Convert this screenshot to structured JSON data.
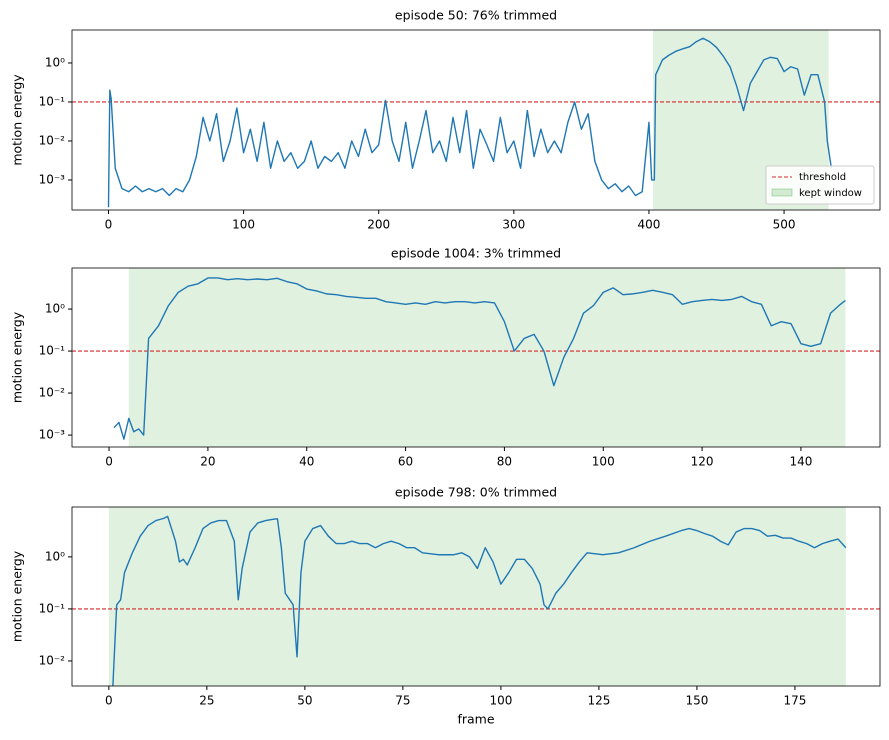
{
  "chart_data": [
    {
      "type": "line",
      "title": "episode 50: 76% trimmed",
      "ylabel": "motion energy",
      "log_y": true,
      "xlim": [
        -27,
        571
      ],
      "ylim": [
        0.00017,
        7
      ],
      "xticks": [
        0,
        100,
        200,
        300,
        400,
        500
      ],
      "yticks": [
        {
          "value": 0.001,
          "label": "10⁻³"
        },
        {
          "value": 0.01,
          "label": "10⁻²"
        },
        {
          "value": 0.1,
          "label": "10⁻¹"
        },
        {
          "value": 1,
          "label": "10⁰"
        }
      ],
      "threshold": 0.1,
      "threshold_color": "#d62728",
      "window": [
        403,
        533
      ],
      "window_color": "#2ca02c",
      "legend": {
        "threshold": "threshold",
        "window": "kept window",
        "loc": "lower right"
      },
      "x": [
        0,
        1,
        2,
        5,
        10,
        15,
        20,
        25,
        30,
        35,
        40,
        45,
        50,
        55,
        60,
        65,
        70,
        75,
        80,
        85,
        90,
        95,
        100,
        105,
        110,
        115,
        120,
        125,
        130,
        135,
        140,
        145,
        150,
        155,
        160,
        165,
        170,
        175,
        180,
        185,
        190,
        195,
        200,
        205,
        210,
        215,
        220,
        225,
        230,
        235,
        240,
        245,
        250,
        255,
        260,
        265,
        270,
        275,
        280,
        285,
        290,
        295,
        300,
        305,
        310,
        315,
        320,
        325,
        330,
        335,
        340,
        345,
        350,
        355,
        360,
        365,
        370,
        375,
        380,
        385,
        390,
        395,
        400,
        402,
        404,
        405,
        410,
        415,
        420,
        425,
        430,
        435,
        440,
        445,
        450,
        455,
        460,
        465,
        470,
        475,
        480,
        485,
        490,
        495,
        500,
        505,
        510,
        515,
        520,
        525,
        530,
        532,
        535
      ],
      "series": [
        {
          "color": "#1f77b4",
          "values": [
            0.0002,
            0.2,
            0.12,
            0.002,
            0.0006,
            0.0005,
            0.0007,
            0.0005,
            0.0006,
            0.0005,
            0.0006,
            0.0004,
            0.0006,
            0.0005,
            0.001,
            0.004,
            0.04,
            0.01,
            0.05,
            0.003,
            0.01,
            0.07,
            0.005,
            0.02,
            0.003,
            0.03,
            0.002,
            0.01,
            0.003,
            0.005,
            0.002,
            0.003,
            0.01,
            0.002,
            0.004,
            0.003,
            0.005,
            0.002,
            0.01,
            0.004,
            0.02,
            0.005,
            0.008,
            0.11,
            0.01,
            0.003,
            0.03,
            0.002,
            0.01,
            0.06,
            0.005,
            0.01,
            0.003,
            0.04,
            0.005,
            0.06,
            0.002,
            0.02,
            0.008,
            0.003,
            0.04,
            0.005,
            0.01,
            0.002,
            0.06,
            0.004,
            0.02,
            0.005,
            0.01,
            0.005,
            0.03,
            0.1,
            0.02,
            0.05,
            0.003,
            0.001,
            0.0006,
            0.0008,
            0.0005,
            0.0007,
            0.0004,
            0.0005,
            0.03,
            0.001,
            0.001,
            0.5,
            1.2,
            1.6,
            2,
            2.3,
            2.6,
            3.5,
            4.3,
            3.5,
            2.5,
            1.5,
            0.8,
            0.25,
            0.06,
            0.3,
            0.6,
            1.2,
            1.4,
            1.3,
            0.6,
            0.8,
            0.7,
            0.15,
            0.5,
            0.5,
            0.1,
            0.01,
            0.002
          ]
        }
      ]
    },
    {
      "type": "line",
      "title": "episode 1004: 3% trimmed",
      "ylabel": "motion energy",
      "log_y": true,
      "xlim": [
        -7.5,
        156
      ],
      "ylim": [
        0.00052,
        9.5
      ],
      "xticks": [
        0,
        20,
        40,
        60,
        80,
        100,
        120,
        140
      ],
      "yticks": [
        {
          "value": 0.001,
          "label": "10⁻³"
        },
        {
          "value": 0.01,
          "label": "10⁻²"
        },
        {
          "value": 0.1,
          "label": "10⁻¹"
        },
        {
          "value": 1,
          "label": "10⁰"
        }
      ],
      "threshold": 0.1,
      "threshold_color": "#d62728",
      "window": [
        4,
        149
      ],
      "window_color": "#2ca02c",
      "x": [
        1,
        2,
        3,
        4,
        5,
        6,
        7,
        8,
        10,
        12,
        14,
        16,
        18,
        20,
        22,
        24,
        26,
        28,
        30,
        32,
        34,
        36,
        38,
        40,
        42,
        44,
        46,
        48,
        50,
        52,
        54,
        56,
        58,
        60,
        62,
        64,
        66,
        68,
        70,
        72,
        74,
        76,
        78,
        80,
        82,
        84,
        86,
        88,
        90,
        92,
        94,
        96,
        98,
        100,
        102,
        104,
        106,
        108,
        110,
        112,
        114,
        116,
        118,
        120,
        122,
        124,
        126,
        128,
        130,
        132,
        134,
        136,
        138,
        140,
        142,
        144,
        146,
        148,
        149
      ],
      "series": [
        {
          "color": "#1f77b4",
          "values": [
            0.0015,
            0.002,
            0.0008,
            0.0025,
            0.0012,
            0.0014,
            0.001,
            0.2,
            0.4,
            1.2,
            2.5,
            3.5,
            4,
            5.5,
            5.5,
            5,
            5.3,
            5,
            5.2,
            5,
            5.4,
            4.5,
            4,
            3,
            2.7,
            2.3,
            2.2,
            2,
            1.9,
            1.8,
            1.8,
            1.5,
            1.4,
            1.3,
            1.4,
            1.3,
            1.5,
            1.4,
            1.5,
            1.5,
            1.4,
            1.5,
            1.4,
            0.5,
            0.1,
            0.2,
            0.25,
            0.1,
            0.015,
            0.07,
            0.2,
            0.8,
            1.2,
            2.5,
            3.2,
            2.2,
            2.3,
            2.5,
            2.8,
            2.5,
            2.2,
            1.3,
            1.5,
            1.6,
            1.7,
            1.6,
            1.7,
            2,
            1.5,
            1.3,
            0.4,
            0.5,
            0.45,
            0.15,
            0.13,
            0.15,
            0.8,
            1.3,
            1.6
          ]
        }
      ]
    },
    {
      "type": "line",
      "title": "episode 798: 0% trimmed",
      "xlabel": "frame",
      "ylabel": "motion energy",
      "log_y": true,
      "xlim": [
        -9.4,
        196.7
      ],
      "ylim": [
        0.0033,
        9.1
      ],
      "xticks": [
        0,
        25,
        50,
        75,
        100,
        125,
        150,
        175
      ],
      "yticks": [
        {
          "value": 0.01,
          "label": "10⁻²"
        },
        {
          "value": 0.1,
          "label": "10⁻¹"
        },
        {
          "value": 1,
          "label": "10⁰"
        }
      ],
      "threshold": 0.1,
      "threshold_color": "#d62728",
      "window": [
        0,
        188
      ],
      "window_color": "#2ca02c",
      "x": [
        1,
        2,
        3,
        4,
        6,
        8,
        10,
        12,
        14,
        15,
        17,
        18,
        19,
        20,
        22,
        24,
        26,
        28,
        30,
        32,
        33,
        34,
        36,
        38,
        40,
        42,
        43,
        44,
        45,
        47,
        48,
        49,
        50,
        52,
        54,
        56,
        58,
        60,
        62,
        64,
        66,
        68,
        70,
        72,
        74,
        76,
        78,
        80,
        84,
        88,
        90,
        92,
        94,
        96,
        98,
        100,
        102,
        104,
        106,
        108,
        110,
        111,
        112,
        114,
        116,
        118,
        120,
        122,
        126,
        130,
        134,
        138,
        142,
        146,
        148,
        150,
        152,
        154,
        156,
        158,
        160,
        162,
        164,
        166,
        168,
        170,
        172,
        174,
        176,
        178,
        180,
        182,
        184,
        186,
        188
      ],
      "series": [
        {
          "color": "#1f77b4",
          "values": [
            0.003,
            0.12,
            0.15,
            0.5,
            1.2,
            2.5,
            4,
            5,
            5.5,
            6,
            2,
            0.8,
            0.9,
            0.7,
            1.5,
            3.5,
            4.5,
            5,
            5,
            2,
            0.15,
            0.6,
            3,
            4.5,
            5,
            5.3,
            5.4,
            1.5,
            0.2,
            0.12,
            0.012,
            0.5,
            2,
            3.5,
            4,
            2.5,
            1.8,
            1.8,
            2,
            1.8,
            1.8,
            1.5,
            1.8,
            2,
            1.8,
            1.5,
            1.5,
            1.2,
            1.1,
            1.1,
            1.2,
            1,
            0.6,
            1.5,
            0.8,
            0.3,
            0.5,
            0.9,
            0.9,
            0.6,
            0.3,
            0.12,
            0.1,
            0.2,
            0.3,
            0.5,
            0.8,
            1.2,
            1.1,
            1.2,
            1.5,
            2,
            2.5,
            3.2,
            3.5,
            3.2,
            2.8,
            2.5,
            2,
            1.7,
            3,
            3.5,
            3.5,
            3.2,
            2.5,
            2.6,
            2.3,
            2.3,
            2,
            1.8,
            1.5,
            1.8,
            2,
            2.2,
            1.5
          ]
        }
      ]
    }
  ]
}
